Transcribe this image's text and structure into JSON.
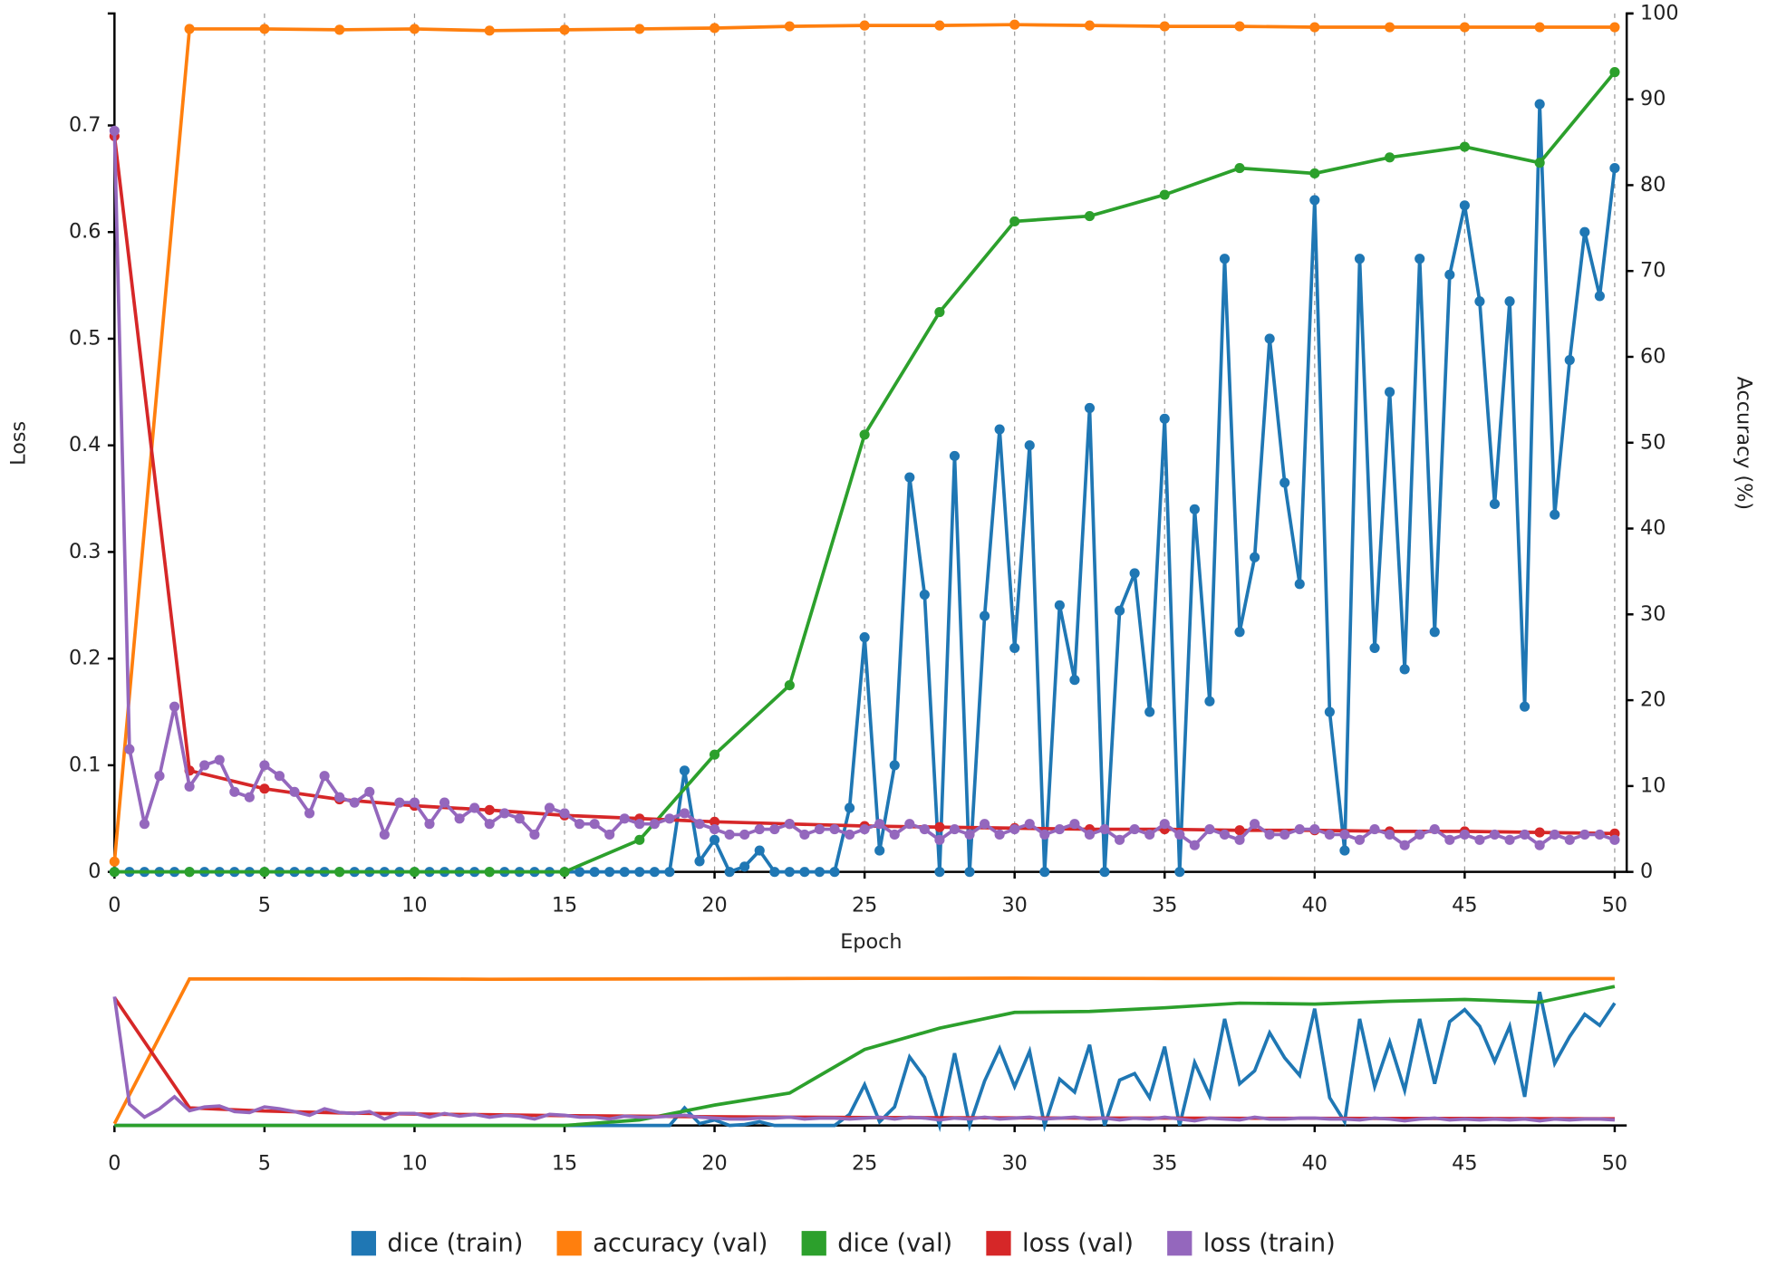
{
  "chart_data": {
    "type": "line",
    "x_label": "Epoch",
    "y_label": "Loss",
    "y2_label": "Accuracy (%)",
    "xlim": [
      0,
      50.4
    ],
    "xticks": [
      0,
      5,
      10,
      15,
      20,
      25,
      30,
      35,
      40,
      45,
      50
    ],
    "ylim": [
      0,
      0.805
    ],
    "yticks": [
      0,
      0.1,
      0.2,
      0.3,
      0.4,
      0.5,
      0.6,
      0.7
    ],
    "y2lim": [
      0,
      100
    ],
    "y2ticks": [
      0,
      10,
      20,
      30,
      40,
      50,
      60,
      70,
      80,
      90,
      100
    ],
    "grid": "x",
    "legend": "bottom",
    "series": [
      {
        "name": "dice (train)",
        "color": "#1f77b4",
        "x": [
          0,
          0.5,
          1,
          1.5,
          2,
          2.5,
          3,
          3.5,
          4,
          4.5,
          5,
          5.5,
          6,
          6.5,
          7,
          7.5,
          8,
          8.5,
          9,
          9.5,
          10,
          10.5,
          11,
          11.5,
          12,
          12.5,
          13,
          13.5,
          14,
          14.5,
          15,
          15.5,
          16,
          16.5,
          17,
          17.5,
          18,
          18.5,
          19,
          19.5,
          20,
          20.5,
          21,
          21.5,
          22,
          22.5,
          23,
          23.5,
          24,
          24.5,
          25,
          25.5,
          26,
          26.5,
          27,
          27.5,
          28,
          28.5,
          29,
          29.5,
          30,
          30.5,
          31,
          31.5,
          32,
          32.5,
          33,
          33.5,
          34,
          34.5,
          35,
          35.5,
          36,
          36.5,
          37,
          37.5,
          38,
          38.5,
          39,
          39.5,
          40,
          40.5,
          41,
          41.5,
          42,
          42.5,
          43,
          43.5,
          44,
          44.5,
          45,
          45.5,
          46,
          46.5,
          47,
          47.5,
          48,
          48.5,
          49,
          49.5,
          50
        ],
        "values": [
          0,
          0,
          0,
          0,
          0,
          0,
          0,
          0,
          0,
          0,
          0,
          0,
          0,
          0,
          0,
          0,
          0,
          0,
          0,
          0,
          0,
          0,
          0,
          0,
          0,
          0,
          0,
          0,
          0,
          0,
          0,
          0,
          0,
          0,
          0,
          0,
          0,
          0,
          0.095,
          0.01,
          0.03,
          0,
          0.005,
          0.02,
          0,
          0,
          0,
          0,
          0,
          0.06,
          0.22,
          0.02,
          0.1,
          0.37,
          0.26,
          0,
          0.39,
          0,
          0.24,
          0.415,
          0.21,
          0.4,
          0,
          0.25,
          0.18,
          0.435,
          0,
          0.245,
          0.28,
          0.15,
          0.425,
          0,
          0.34,
          0.16,
          0.575,
          0.225,
          0.295,
          0.5,
          0.365,
          0.27,
          0.63,
          0.15,
          0.02,
          0.575,
          0.21,
          0.45,
          0.19,
          0.575,
          0.225,
          0.56,
          0.625,
          0.535,
          0.345,
          0.535,
          0.155,
          0.72,
          0.335,
          0.48,
          0.6,
          0.54,
          0.66
        ]
      },
      {
        "name": "accuracy (val)",
        "color": "#ff7f0e",
        "axis": "y2",
        "x": [
          0,
          2.5,
          5,
          7.5,
          10,
          12.5,
          15,
          17.5,
          20,
          22.5,
          25,
          27.5,
          30,
          32.5,
          35,
          37.5,
          40,
          42.5,
          45,
          47.5,
          50
        ],
        "values": [
          1.2,
          98.2,
          98.2,
          98.1,
          98.2,
          98.0,
          98.1,
          98.2,
          98.3,
          98.5,
          98.6,
          98.6,
          98.7,
          98.6,
          98.5,
          98.5,
          98.4,
          98.4,
          98.4,
          98.4,
          98.4
        ]
      },
      {
        "name": "dice (val)",
        "color": "#2ca02c",
        "x": [
          0,
          2.5,
          5,
          7.5,
          10,
          12.5,
          15,
          17.5,
          20,
          22.5,
          25,
          27.5,
          30,
          32.5,
          35,
          37.5,
          40,
          42.5,
          45,
          47.5,
          50
        ],
        "values": [
          0,
          0,
          0,
          0,
          0,
          0,
          0,
          0.03,
          0.11,
          0.175,
          0.41,
          0.525,
          0.61,
          0.615,
          0.635,
          0.66,
          0.655,
          0.67,
          0.68,
          0.665,
          0.75
        ]
      },
      {
        "name": "loss (val)",
        "color": "#d62728",
        "x": [
          0,
          2.5,
          5,
          7.5,
          10,
          12.5,
          15,
          17.5,
          20,
          22.5,
          25,
          27.5,
          30,
          32.5,
          35,
          37.5,
          40,
          42.5,
          45,
          47.5,
          50
        ],
        "values": [
          0.69,
          0.095,
          0.078,
          0.068,
          0.062,
          0.058,
          0.053,
          0.05,
          0.047,
          0.045,
          0.043,
          0.042,
          0.041,
          0.04,
          0.04,
          0.039,
          0.039,
          0.038,
          0.038,
          0.037,
          0.036
        ]
      },
      {
        "name": "loss (train)",
        "color": "#9467bd",
        "x": [
          0,
          0.5,
          1,
          1.5,
          2,
          2.5,
          3,
          3.5,
          4,
          4.5,
          5,
          5.5,
          6,
          6.5,
          7,
          7.5,
          8,
          8.5,
          9,
          9.5,
          10,
          10.5,
          11,
          11.5,
          12,
          12.5,
          13,
          13.5,
          14,
          14.5,
          15,
          15.5,
          16,
          16.5,
          17,
          17.5,
          18,
          18.5,
          19,
          19.5,
          20,
          20.5,
          21,
          21.5,
          22,
          22.5,
          23,
          23.5,
          24,
          24.5,
          25,
          25.5,
          26,
          26.5,
          27,
          27.5,
          28,
          28.5,
          29,
          29.5,
          30,
          30.5,
          31,
          31.5,
          32,
          32.5,
          33,
          33.5,
          34,
          34.5,
          35,
          35.5,
          36,
          36.5,
          37,
          37.5,
          38,
          38.5,
          39,
          39.5,
          40,
          40.5,
          41,
          41.5,
          42,
          42.5,
          43,
          43.5,
          44,
          44.5,
          45,
          45.5,
          46,
          46.5,
          47,
          47.5,
          48,
          48.5,
          49,
          49.5,
          50
        ],
        "values": [
          0.695,
          0.115,
          0.045,
          0.09,
          0.155,
          0.08,
          0.1,
          0.105,
          0.075,
          0.07,
          0.1,
          0.09,
          0.075,
          0.055,
          0.09,
          0.07,
          0.065,
          0.075,
          0.035,
          0.065,
          0.065,
          0.045,
          0.065,
          0.05,
          0.06,
          0.045,
          0.055,
          0.05,
          0.035,
          0.06,
          0.055,
          0.045,
          0.045,
          0.035,
          0.05,
          0.045,
          0.045,
          0.05,
          0.055,
          0.045,
          0.04,
          0.035,
          0.035,
          0.04,
          0.04,
          0.045,
          0.035,
          0.04,
          0.04,
          0.035,
          0.04,
          0.045,
          0.035,
          0.045,
          0.04,
          0.03,
          0.04,
          0.035,
          0.045,
          0.035,
          0.04,
          0.045,
          0.035,
          0.04,
          0.045,
          0.035,
          0.04,
          0.03,
          0.04,
          0.035,
          0.045,
          0.035,
          0.025,
          0.04,
          0.035,
          0.03,
          0.045,
          0.035,
          0.035,
          0.04,
          0.04,
          0.035,
          0.035,
          0.03,
          0.04,
          0.035,
          0.025,
          0.035,
          0.04,
          0.03,
          0.035,
          0.03,
          0.035,
          0.03,
          0.035,
          0.025,
          0.035,
          0.03,
          0.035,
          0.035,
          0.03
        ]
      }
    ]
  }
}
